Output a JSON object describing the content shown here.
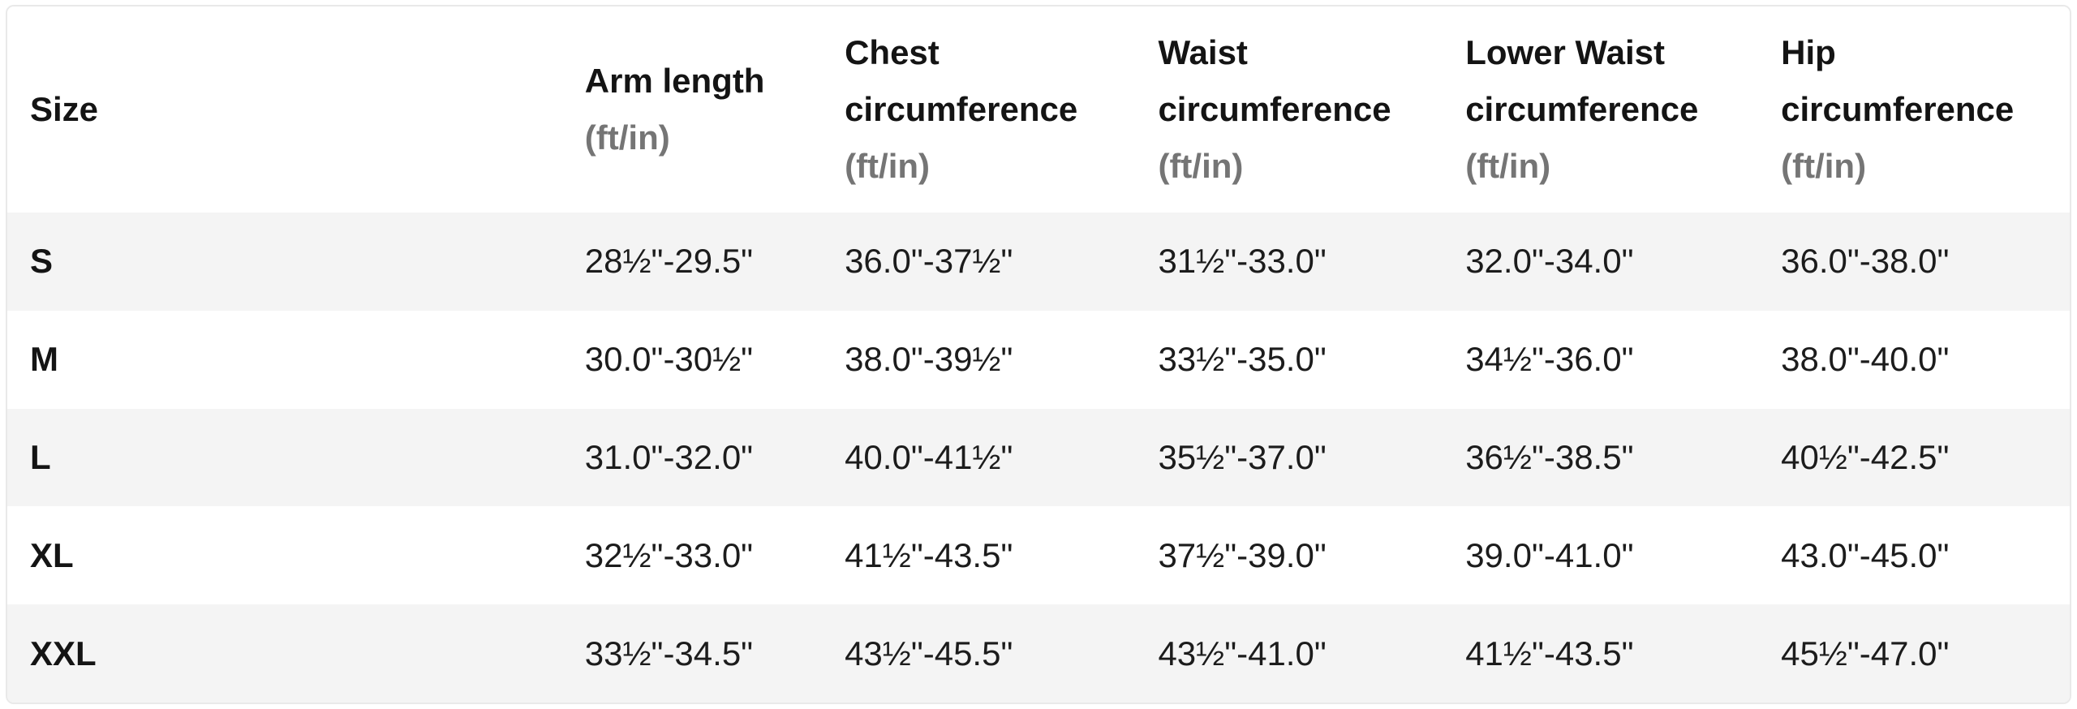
{
  "table": {
    "columns": [
      {
        "label": "Size",
        "unit": ""
      },
      {
        "label": "Arm length",
        "unit": "(ft/in)"
      },
      {
        "label": "Chest circumference",
        "unit": "(ft/in)"
      },
      {
        "label": "Waist circumference",
        "unit": "(ft/in)"
      },
      {
        "label": "Lower Waist circumference",
        "unit": "(ft/in)"
      },
      {
        "label": "Hip circumference",
        "unit": "(ft/in)"
      }
    ],
    "rows": [
      {
        "size": "S",
        "arm_length": "28½\"-29.5\"",
        "chest": "36.0\"-37½\"",
        "waist": "31½\"-33.0\"",
        "lower_waist": "32.0\"-34.0\"",
        "hip": "36.0\"-38.0\""
      },
      {
        "size": "M",
        "arm_length": "30.0\"-30½\"",
        "chest": "38.0\"-39½\"",
        "waist": "33½\"-35.0\"",
        "lower_waist": "34½\"-36.0\"",
        "hip": "38.0\"-40.0\""
      },
      {
        "size": "L",
        "arm_length": "31.0\"-32.0\"",
        "chest": "40.0\"-41½\"",
        "waist": "35½\"-37.0\"",
        "lower_waist": "36½\"-38.5\"",
        "hip": "40½\"-42.5\""
      },
      {
        "size": "XL",
        "arm_length": "32½\"-33.0\"",
        "chest": "41½\"-43.5\"",
        "waist": "37½\"-39.0\"",
        "lower_waist": "39.0\"-41.0\"",
        "hip": "43.0\"-45.0\""
      },
      {
        "size": "XXL",
        "arm_length": "33½\"-34.5\"",
        "chest": "43½\"-45.5\"",
        "waist": "43½\"-41.0\"",
        "lower_waist": "41½\"-43.5\"",
        "hip": "45½\"-47.0\""
      }
    ]
  },
  "colors": {
    "zebra_row_bg": "#f4f4f4",
    "row_bg": "#ffffff",
    "header_text": "#141414",
    "data_text": "#1c1c1c",
    "unit_text": "#757575",
    "border": "#e9e9e9"
  }
}
